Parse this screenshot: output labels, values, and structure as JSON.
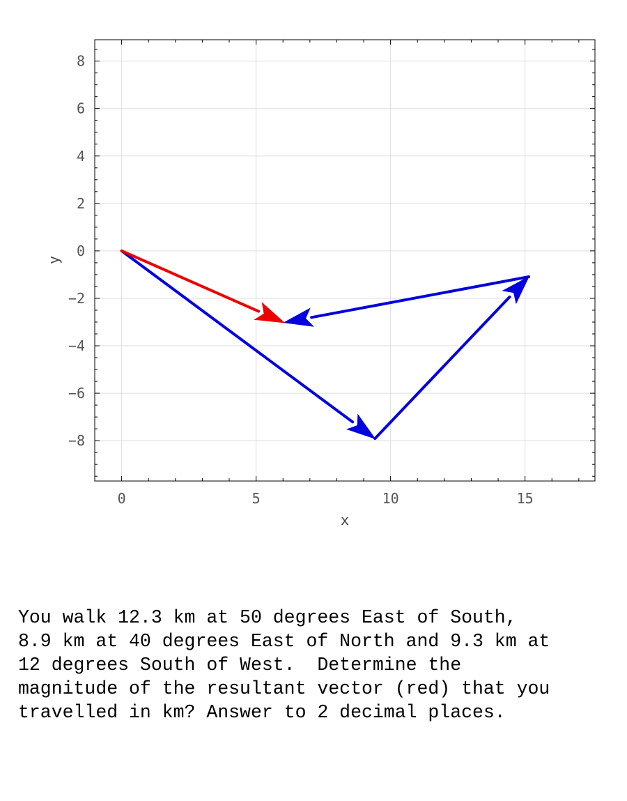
{
  "chart_data": {
    "type": "vector-plot",
    "xlabel": "x",
    "ylabel": "y",
    "xlim": [
      -1,
      17.6
    ],
    "ylim": [
      -9.7,
      8.9
    ],
    "xticks": [
      0,
      5,
      10,
      15
    ],
    "yticks": [
      8,
      6,
      4,
      2,
      0,
      -2,
      -4,
      -6,
      -8
    ],
    "grid": true,
    "colors": {
      "component": "#0000e0",
      "resultant": "#ee0000"
    },
    "vectors": [
      {
        "role": "component",
        "from": [
          0,
          0
        ],
        "to": [
          9.42,
          -7.91
        ]
      },
      {
        "role": "component",
        "from": [
          9.42,
          -7.91
        ],
        "to": [
          15.14,
          -1.09
        ]
      },
      {
        "role": "component",
        "from": [
          15.14,
          -1.09
        ],
        "to": [
          6.04,
          -3.02
        ]
      },
      {
        "role": "resultant",
        "from": [
          0,
          0
        ],
        "to": [
          6.04,
          -3.02
        ]
      }
    ]
  },
  "question": {
    "text": "You walk 12.3 km at 50 degrees East of South,\n8.9 km at 40 degrees East of North and 9.3 km at\n12 degrees South of West.  Determine the\nmagnitude of the resultant vector (red) that you\ntravelled in km? Answer to 2 decimal places."
  }
}
